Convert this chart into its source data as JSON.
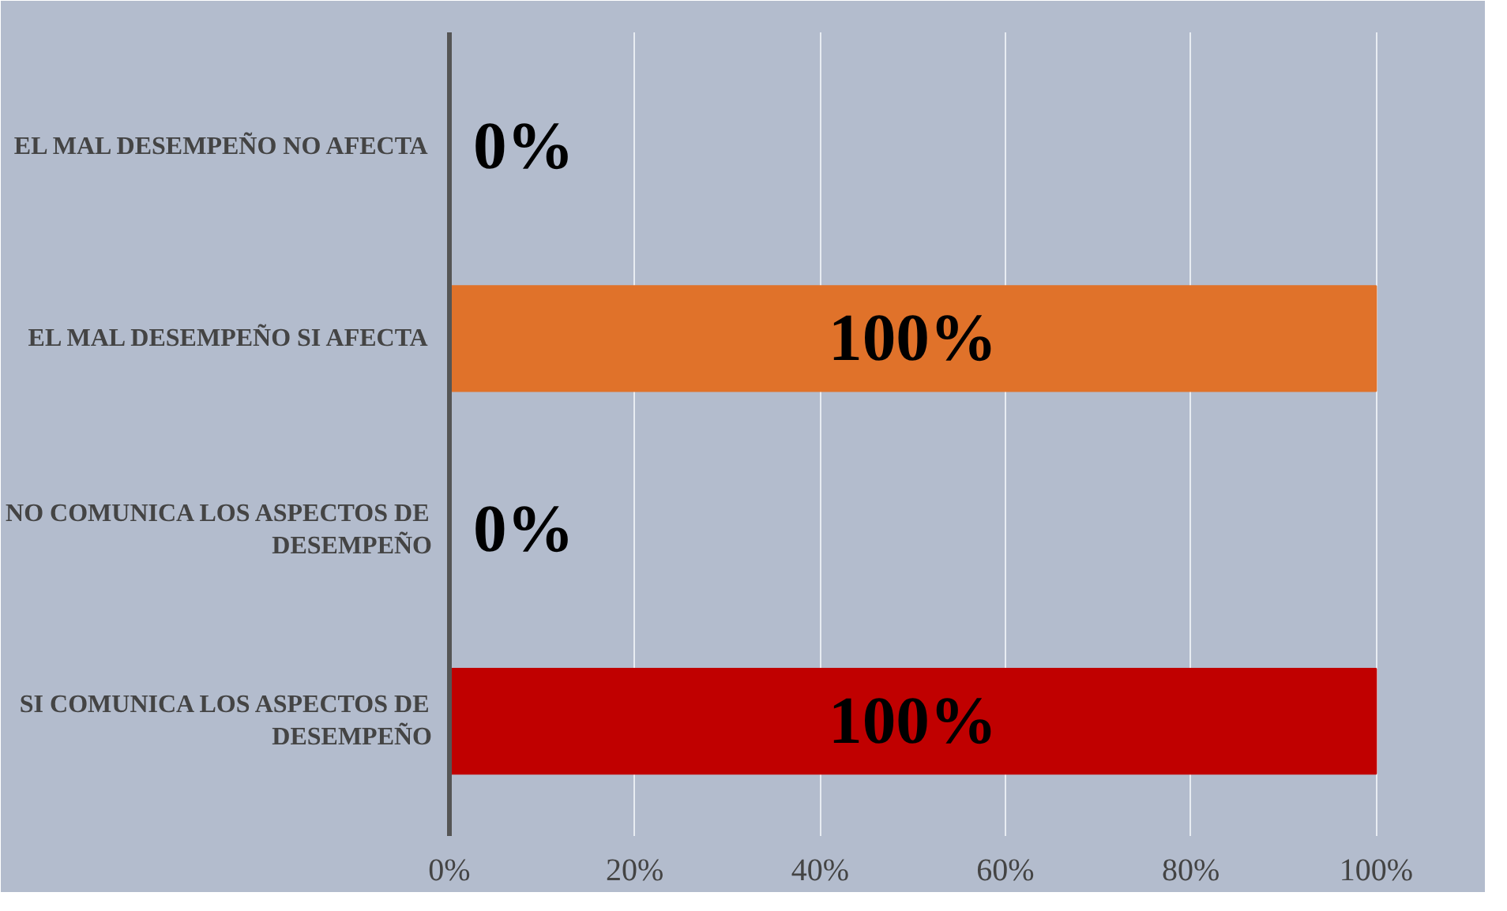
{
  "chart_data": {
    "type": "bar",
    "orientation": "horizontal",
    "categories": [
      "EL MAL DESEMPEÑO NO AFECTA",
      "EL MAL DESEMPEÑO SI AFECTA",
      "NO COMUNICA LOS ASPECTOS DE DESEMPEÑO",
      "SI COMUNICA LOS ASPECTOS DE DESEMPEÑO"
    ],
    "values": [
      0,
      100,
      0,
      100
    ],
    "colors": [
      "#b00000",
      "#e0722a",
      "#b00000",
      "#c00000"
    ],
    "value_labels": [
      "0%",
      "100%",
      "0%",
      "100%"
    ],
    "xlim": [
      0,
      100
    ],
    "xticks": [
      {
        "value": 0,
        "label": "0%"
      },
      {
        "value": 20,
        "label": "20%"
      },
      {
        "value": 40,
        "label": "40%"
      },
      {
        "value": 60,
        "label": "60%"
      },
      {
        "value": 80,
        "label": "80%"
      },
      {
        "value": 100,
        "label": "100%"
      }
    ],
    "grid": "x"
  }
}
